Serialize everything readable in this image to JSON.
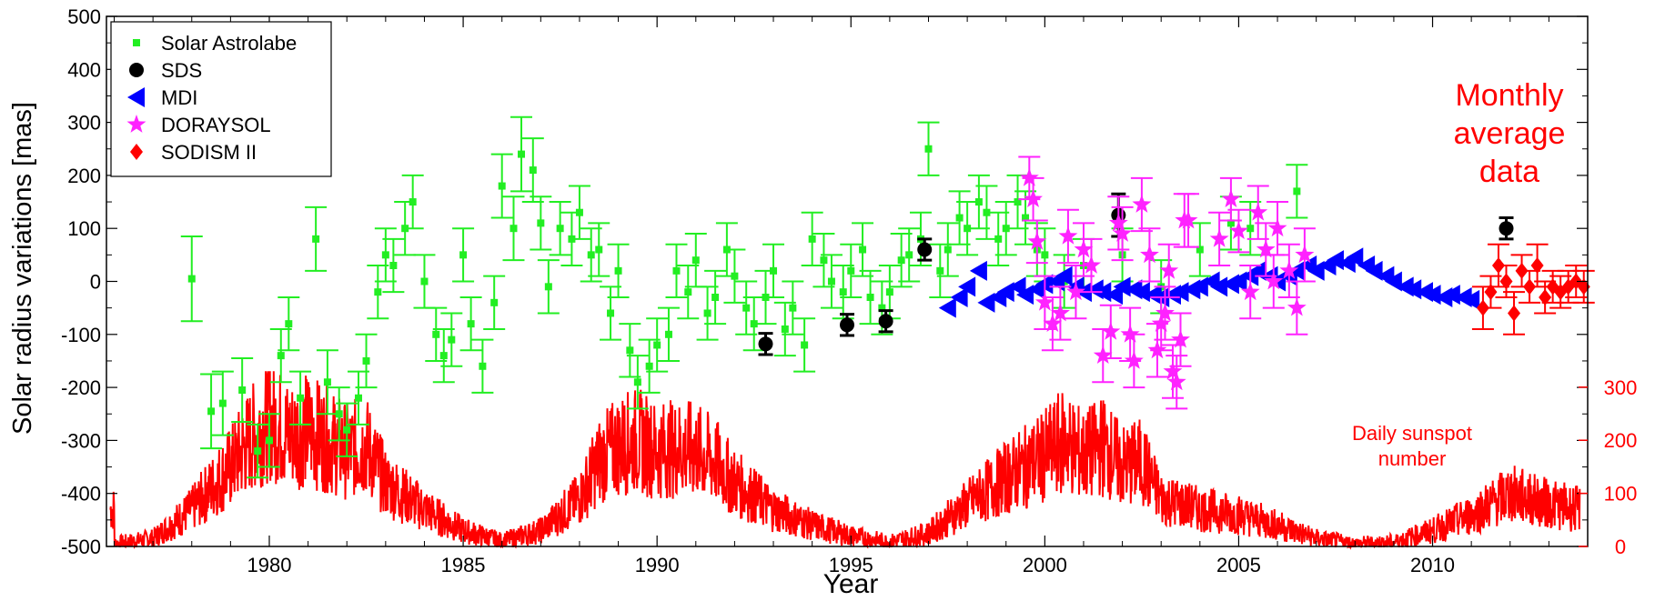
{
  "chart_data": {
    "type": "scatter",
    "xlabel": "Year",
    "ylabel": "Solar radius variations [mas]",
    "xlim": [
      1975.8,
      2014.0
    ],
    "ylim": [
      -500,
      500
    ],
    "x_ticks": [
      1980,
      1985,
      1990,
      1995,
      2000,
      2005,
      2010
    ],
    "y_ticks": [
      -500,
      -400,
      -300,
      -200,
      -100,
      0,
      100,
      200,
      300,
      400,
      500
    ],
    "right_axis": {
      "label": "Daily sunspot number",
      "ticks": [
        0,
        100,
        200,
        300
      ],
      "ylim": [
        0,
        400
      ],
      "color": "#ff0000"
    },
    "annotation": {
      "lines": [
        "Monthly",
        "average",
        "data"
      ],
      "color": "#ff0000"
    },
    "legend": {
      "placement": "top-left",
      "entries": [
        {
          "name": "Solar Astrolabe",
          "marker": "square",
          "color": "#22ee22"
        },
        {
          "name": "SDS",
          "marker": "circle",
          "color": "#000000"
        },
        {
          "name": "MDI",
          "marker": "triangle-left",
          "color": "#0000ff"
        },
        {
          "name": "DORAYSOL",
          "marker": "star",
          "color": "#ff22ff"
        },
        {
          "name": "SODISM II",
          "marker": "diamond",
          "color": "#ff0000"
        }
      ]
    },
    "series": [
      {
        "name": "Solar Astrolabe",
        "color": "#22ee22",
        "marker": "square",
        "x": [
          1978.0,
          1978.5,
          1978.8,
          1979.3,
          1979.7,
          1980.0,
          1980.3,
          1980.5,
          1980.8,
          1981.2,
          1981.5,
          1981.8,
          1982.0,
          1982.3,
          1982.5,
          1982.8,
          1983.0,
          1983.2,
          1983.5,
          1983.7,
          1984.0,
          1984.3,
          1984.5,
          1984.7,
          1985.0,
          1985.2,
          1985.5,
          1985.8,
          1986.0,
          1986.3,
          1986.5,
          1986.8,
          1987.0,
          1987.2,
          1987.5,
          1987.8,
          1988.0,
          1988.3,
          1988.5,
          1988.8,
          1989.0,
          1989.3,
          1989.5,
          1989.8,
          1990.0,
          1990.3,
          1990.5,
          1990.8,
          1991.0,
          1991.3,
          1991.5,
          1991.8,
          1992.0,
          1992.3,
          1992.5,
          1992.8,
          1993.0,
          1993.3,
          1993.5,
          1993.8,
          1994.0,
          1994.3,
          1994.5,
          1994.8,
          1995.0,
          1995.3,
          1995.5,
          1995.8,
          1996.0,
          1996.3,
          1996.5,
          1996.8,
          1997.0,
          1997.3,
          1997.5,
          1997.8,
          1998.0,
          1998.3,
          1998.5,
          1998.8,
          1999.0,
          1999.3,
          1999.5,
          1999.8,
          2000.0,
          2000.5,
          2001.0,
          2002.0,
          2003.0,
          2004.0,
          2004.8,
          2005.3,
          2006.5
        ],
        "y": [
          5,
          -245,
          -230,
          -205,
          -320,
          -300,
          -140,
          -80,
          -220,
          80,
          -190,
          -250,
          -280,
          -220,
          -150,
          -20,
          50,
          30,
          100,
          150,
          0,
          -100,
          -140,
          -110,
          50,
          -80,
          -160,
          -40,
          180,
          100,
          240,
          210,
          110,
          -10,
          100,
          80,
          130,
          50,
          60,
          -60,
          20,
          -130,
          -190,
          -160,
          -120,
          -100,
          20,
          -20,
          40,
          -60,
          -30,
          60,
          10,
          -50,
          -80,
          -30,
          20,
          -90,
          -50,
          -120,
          80,
          40,
          0,
          -20,
          20,
          60,
          -30,
          -50,
          -20,
          40,
          50,
          80,
          250,
          20,
          60,
          120,
          100,
          150,
          130,
          80,
          100,
          150,
          120,
          60,
          50,
          0,
          30,
          50,
          -10,
          60,
          110,
          100,
          170
        ],
        "err": [
          80,
          70,
          60,
          60,
          50,
          50,
          50,
          50,
          50,
          60,
          60,
          50,
          50,
          50,
          50,
          50,
          50,
          50,
          50,
          50,
          50,
          50,
          50,
          50,
          50,
          50,
          50,
          50,
          60,
          60,
          70,
          60,
          50,
          50,
          50,
          50,
          50,
          50,
          50,
          50,
          50,
          50,
          50,
          50,
          50,
          50,
          50,
          50,
          50,
          50,
          50,
          50,
          50,
          50,
          50,
          50,
          50,
          50,
          50,
          50,
          50,
          50,
          50,
          50,
          50,
          50,
          50,
          50,
          50,
          50,
          50,
          50,
          50,
          50,
          50,
          50,
          50,
          50,
          50,
          50,
          50,
          50,
          50,
          50,
          50,
          50,
          50,
          50,
          50,
          50,
          50,
          50,
          50
        ]
      },
      {
        "name": "SDS",
        "color": "#000000",
        "marker": "circle",
        "x": [
          1992.8,
          1994.9,
          1995.9,
          1996.9,
          2001.9,
          2011.9
        ],
        "y": [
          -118,
          -82,
          -75,
          60,
          125,
          100
        ],
        "err": [
          20,
          20,
          20,
          20,
          40,
          20
        ]
      },
      {
        "name": "MDI",
        "color": "#0000ff",
        "marker": "triangle-left",
        "x": [
          1997.5,
          1997.8,
          1998.0,
          1998.3,
          1998.5,
          1998.8,
          1999.0,
          1999.3,
          1999.5,
          1999.8,
          2000.0,
          2000.3,
          2000.5,
          2000.8,
          2001.0,
          2001.3,
          2001.5,
          2001.8,
          2002.0,
          2002.3,
          2002.5,
          2002.8,
          2003.0,
          2003.3,
          2003.5,
          2003.8,
          2004.0,
          2004.3,
          2004.5,
          2004.8,
          2005.0,
          2005.3,
          2005.5,
          2005.8,
          2006.0,
          2006.3,
          2006.5,
          2006.8,
          2007.0,
          2007.3,
          2007.5,
          2007.8,
          2008.0,
          2008.3,
          2008.5,
          2008.8,
          2009.0,
          2009.3,
          2009.5,
          2009.8,
          2010.0,
          2010.3,
          2010.5,
          2010.8,
          2011.0
        ],
        "y": [
          -50,
          -30,
          -10,
          20,
          -40,
          -30,
          -20,
          -10,
          -25,
          -15,
          -5,
          0,
          10,
          -10,
          -20,
          -15,
          -20,
          -25,
          -10,
          -15,
          -20,
          -25,
          -30,
          -25,
          -20,
          -15,
          -10,
          0,
          -10,
          -5,
          0,
          10,
          20,
          10,
          0,
          10,
          20,
          30,
          20,
          30,
          40,
          35,
          45,
          30,
          20,
          10,
          0,
          -10,
          -15,
          -20,
          -25,
          -30,
          -25,
          -30,
          -35
        ]
      },
      {
        "name": "DORAYSOL",
        "color": "#ff22ff",
        "marker": "star",
        "x": [
          1999.6,
          1999.7,
          1999.8,
          2000.0,
          2000.2,
          2000.4,
          2000.6,
          2000.8,
          2001.0,
          2001.2,
          2001.5,
          2001.7,
          2001.9,
          2002.0,
          2002.2,
          2002.3,
          2002.5,
          2002.7,
          2002.9,
          2003.0,
          2003.1,
          2003.2,
          2003.3,
          2003.4,
          2003.5,
          2003.6,
          2003.7,
          2004.5,
          2004.8,
          2005.0,
          2005.3,
          2005.5,
          2005.7,
          2005.9,
          2006.0,
          2006.3,
          2006.5,
          2006.7
        ],
        "y": [
          195,
          155,
          75,
          -40,
          -80,
          -60,
          85,
          -20,
          60,
          30,
          -140,
          -95,
          110,
          90,
          -100,
          -150,
          145,
          50,
          -130,
          -80,
          -60,
          20,
          -170,
          -190,
          -110,
          115,
          115,
          80,
          155,
          95,
          -20,
          130,
          60,
          0,
          100,
          20,
          -50,
          50
        ],
        "err": [
          40,
          40,
          40,
          50,
          50,
          50,
          50,
          50,
          50,
          50,
          50,
          50,
          50,
          50,
          50,
          50,
          50,
          50,
          50,
          50,
          50,
          50,
          50,
          50,
          50,
          50,
          50,
          50,
          40,
          40,
          50,
          50,
          50,
          50,
          50,
          50,
          50,
          50
        ]
      },
      {
        "name": "SODISM II",
        "color": "#ff0000",
        "marker": "diamond",
        "x": [
          2011.3,
          2011.5,
          2011.7,
          2011.9,
          2012.1,
          2012.3,
          2012.5,
          2012.7,
          2012.9,
          2013.1,
          2013.3,
          2013.5,
          2013.7,
          2013.9
        ],
        "y": [
          -50,
          -20,
          30,
          0,
          -60,
          20,
          -10,
          30,
          -30,
          -10,
          -20,
          -10,
          0,
          -10
        ],
        "err": [
          40,
          30,
          40,
          30,
          40,
          30,
          30,
          40,
          30,
          30,
          30,
          30,
          30,
          30
        ]
      },
      {
        "name": "Daily sunspot number",
        "color": "#ff0000",
        "type": "line",
        "axis": "right",
        "x": [
          1976.0,
          1977.0,
          1978.0,
          1979.0,
          1979.5,
          1980.0,
          1980.5,
          1981.0,
          1981.5,
          1982.0,
          1982.5,
          1983.0,
          1984.0,
          1985.0,
          1986.0,
          1987.0,
          1988.0,
          1988.5,
          1989.0,
          1989.5,
          1990.0,
          1990.5,
          1991.0,
          1991.5,
          1992.0,
          1993.0,
          1994.0,
          1995.0,
          1996.0,
          1997.0,
          1998.0,
          1999.0,
          2000.0,
          2000.5,
          2001.0,
          2001.5,
          2002.0,
          2002.5,
          2003.0,
          2004.0,
          2005.0,
          2006.0,
          2007.0,
          2008.0,
          2009.0,
          2010.0,
          2011.0,
          2011.5,
          2012.0,
          2013.0,
          2013.8
        ],
        "y": [
          5,
          15,
          70,
          150,
          200,
          240,
          210,
          220,
          200,
          180,
          190,
          120,
          70,
          30,
          10,
          30,
          90,
          160,
          190,
          200,
          180,
          185,
          180,
          160,
          120,
          70,
          40,
          20,
          8,
          25,
          80,
          130,
          170,
          200,
          170,
          190,
          150,
          160,
          90,
          70,
          60,
          40,
          15,
          5,
          8,
          30,
          60,
          80,
          100,
          80,
          70
        ]
      }
    ]
  }
}
